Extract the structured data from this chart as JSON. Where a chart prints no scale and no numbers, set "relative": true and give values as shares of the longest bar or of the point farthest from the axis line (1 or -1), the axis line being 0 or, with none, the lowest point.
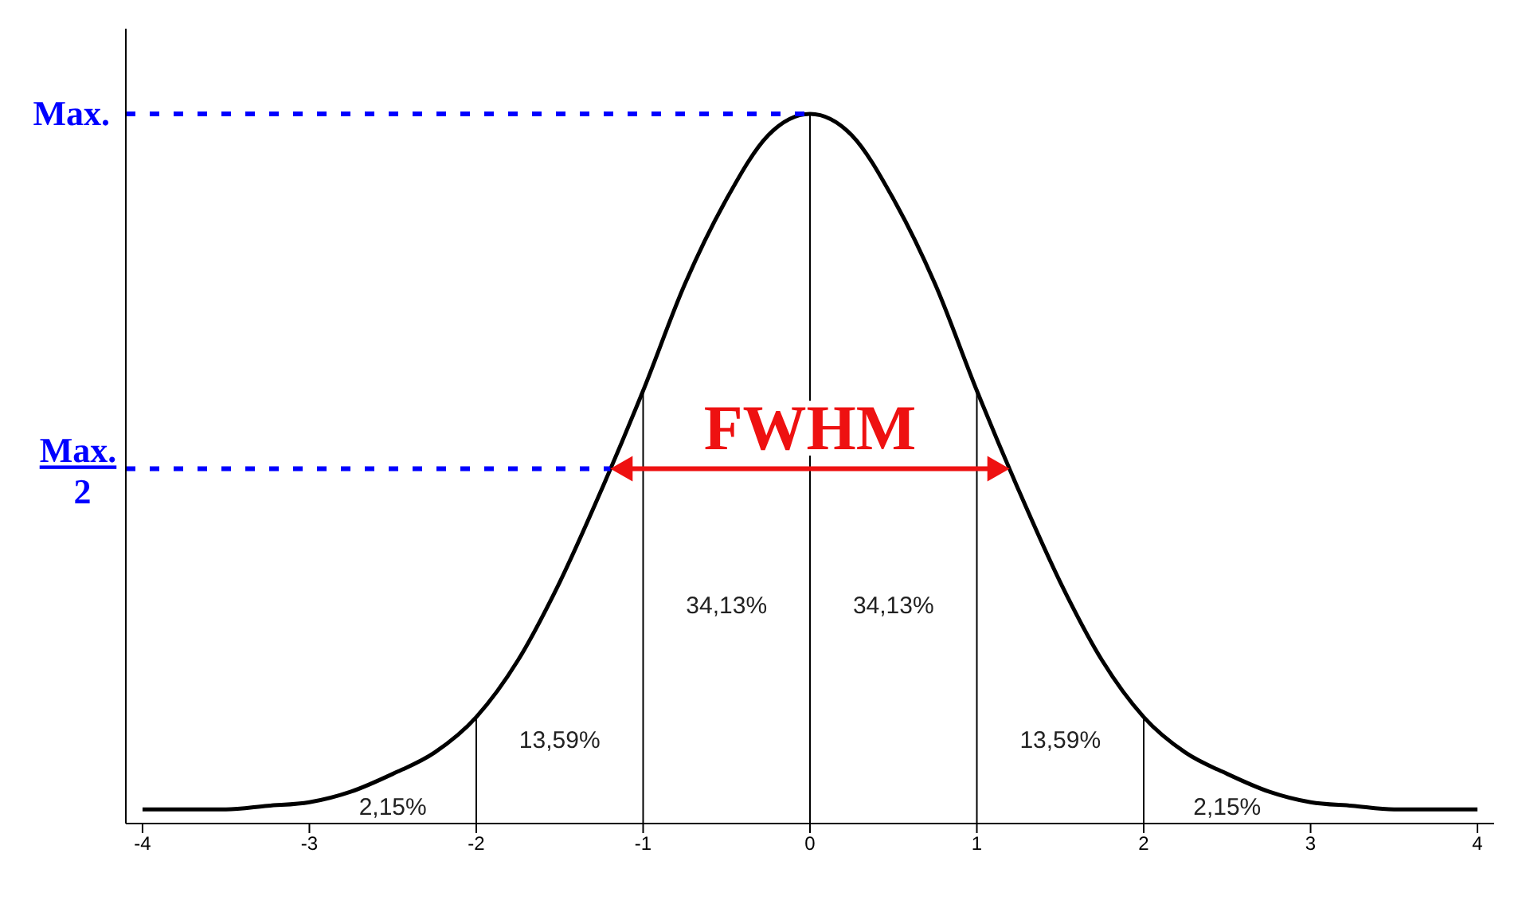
{
  "chart_data": {
    "type": "line",
    "relative": true,
    "tick_labels": "x",
    "marker": "none",
    "line_style": "solid",
    "grid": false,
    "legend": false,
    "xlim": [
      -4.1,
      4.1
    ],
    "xticks": [
      -4,
      -3,
      -2,
      -1,
      0,
      1,
      2,
      3,
      4
    ],
    "series": [
      {
        "color": "#000000",
        "x": [
          -4,
          -3.75,
          -3.5,
          -3.25,
          -3,
          -2.75,
          -2.5,
          -2.25,
          -2,
          -1.75,
          -1.5,
          -1.25,
          -1,
          -0.75,
          -0.5,
          -0.25,
          0,
          0.25,
          0.5,
          0.75,
          1,
          1.25,
          1.5,
          1.75,
          2,
          2.25,
          2.5,
          2.75,
          3,
          3.25,
          3.5,
          3.75,
          4
        ],
        "values": [
          0.02,
          0.02,
          0.02,
          0.025,
          0.03,
          0.045,
          0.07,
          0.1,
          0.15,
          0.23,
          0.34,
          0.47,
          0.61,
          0.76,
          0.88,
          0.97,
          1,
          0.97,
          0.88,
          0.76,
          0.61,
          0.47,
          0.34,
          0.23,
          0.15,
          0.1,
          0.07,
          0.045,
          0.03,
          0.025,
          0.02,
          0.02,
          0.02
        ]
      }
    ],
    "ref_lines": [
      {
        "axis": "y",
        "value": 1,
        "label": "Max.",
        "color": "#0000ff",
        "line_style": "dashed"
      },
      {
        "axis": "y",
        "value": 0.5,
        "label": "Max. 2",
        "color": "#0000ff",
        "line_style": "dashed"
      },
      {
        "axis": "x",
        "value": -2,
        "color": "#000000"
      },
      {
        "axis": "x",
        "value": -1,
        "color": "#000000"
      },
      {
        "axis": "x",
        "value": 0,
        "color": "#000000"
      },
      {
        "axis": "x",
        "value": 1,
        "color": "#000000"
      },
      {
        "axis": "x",
        "value": 2,
        "color": "#000000"
      }
    ],
    "annotations": [
      {
        "text": "FWHM",
        "x": 0,
        "y": 0.5
      },
      "2,15%",
      "13,59%",
      "34,13%",
      "34,13%",
      "13,59%",
      "2,15%"
    ]
  }
}
